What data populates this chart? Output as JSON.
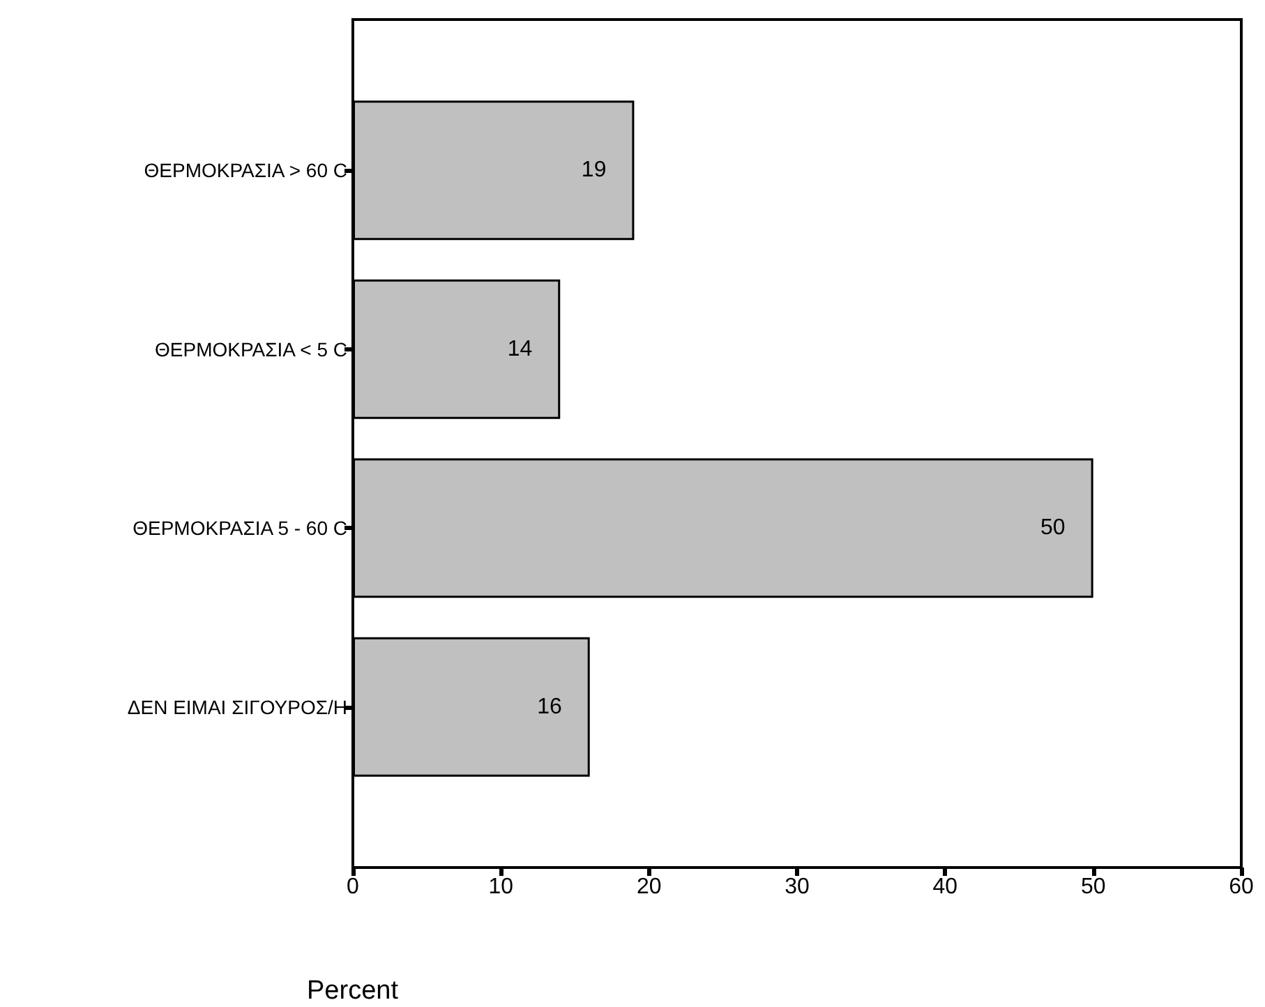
{
  "chart_data": {
    "type": "bar",
    "orientation": "horizontal",
    "xlabel": "Percent",
    "categories": [
      "ΘΕΡΜΟΚΡΑΣΙΑ > 60 C",
      "ΘΕΡΜΟΚΡΑΣΙΑ < 5 C",
      "ΘΕΡΜΟΚΡΑΣΙΑ 5 - 60 C",
      "ΔΕΝ ΕΙΜΑΙ ΣΙΓΟΥΡΟΣ/Η"
    ],
    "values": [
      19,
      14,
      50,
      16
    ],
    "color": "#c0c0c0",
    "xlim": [
      0,
      60
    ],
    "xticks": [
      0,
      10,
      20,
      30,
      40,
      50,
      60
    ],
    "data_labels": true
  }
}
